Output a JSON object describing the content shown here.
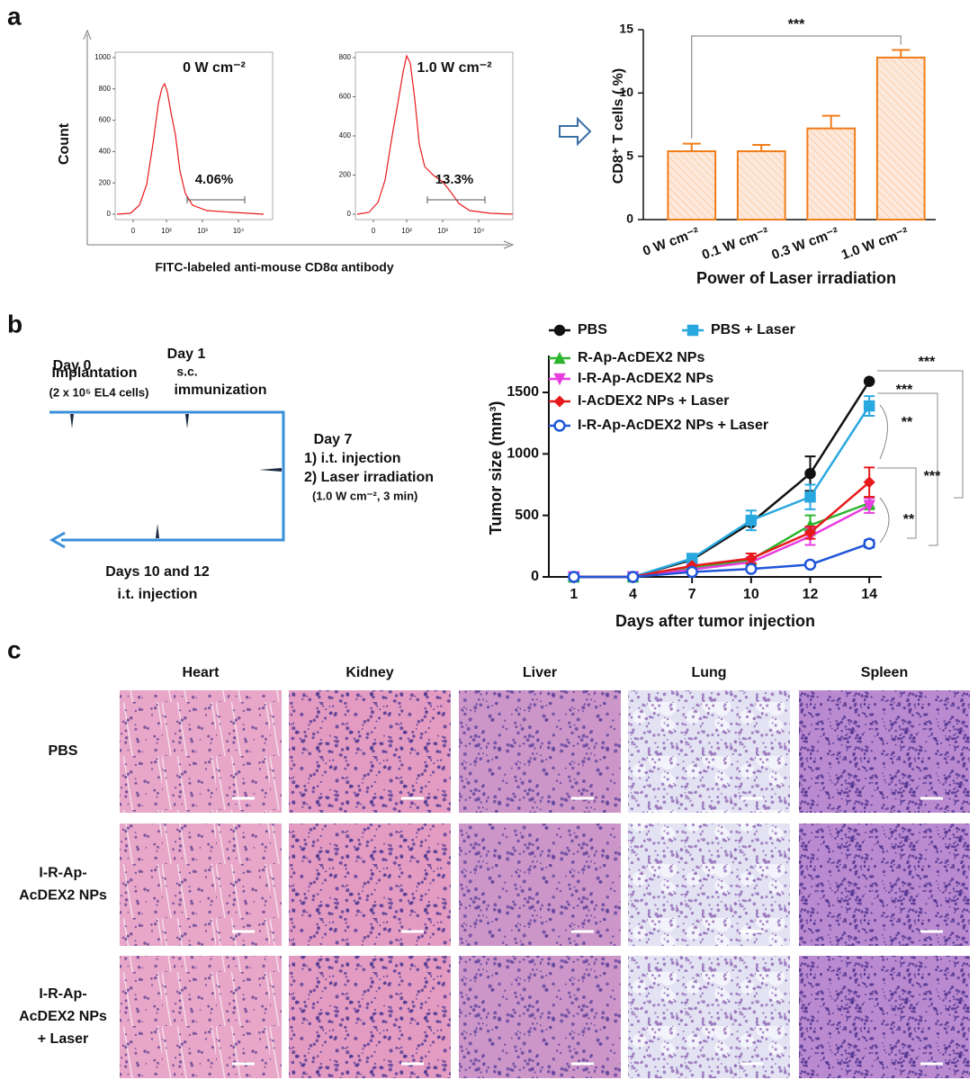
{
  "panel_labels": [
    "a",
    "b",
    "c"
  ],
  "flow": {
    "ylabel": "Count",
    "xlabel": "FITC-labeled anti-mouse CD8α antibody",
    "plots": [
      {
        "title": "0 W cm⁻²",
        "gate": "4.06%",
        "ylim": [
          0,
          1000
        ],
        "yticks": [
          0,
          200,
          400,
          600,
          800,
          1000
        ],
        "xticks": [
          {
            "value": 0,
            "label": "0"
          },
          {
            "value": 100,
            "label": "10²"
          },
          {
            "value": 1000,
            "label": "10³"
          },
          {
            "value": 10000,
            "label": "10⁴"
          }
        ]
      },
      {
        "title": "1.0 W cm⁻²",
        "gate": "13.3%",
        "ylim": [
          0,
          800
        ],
        "yticks": [
          0,
          200,
          400,
          600,
          800
        ],
        "xticks": [
          {
            "value": 0,
            "label": "0"
          },
          {
            "value": 100,
            "label": "10²"
          },
          {
            "value": 1000,
            "label": "10³"
          },
          {
            "value": 10000,
            "label": "10⁴"
          }
        ]
      }
    ]
  },
  "chart_data": [
    {
      "type": "bar",
      "ylabel": "CD8⁺ T cells ( %)",
      "xlabel": "Power of Laser irradiation",
      "categories": [
        "0 W cm⁻²",
        "0.1 W cm⁻²",
        "0.3 W cm⁻²",
        "1.0 W cm⁻²"
      ],
      "values": [
        5.4,
        5.4,
        7.2,
        12.8
      ],
      "errors": [
        0.6,
        0.5,
        1.0,
        0.6
      ],
      "color": "#f07d1a",
      "ylim": [
        0,
        15
      ],
      "yticks": [
        0,
        5,
        10,
        15
      ],
      "annotation": "***"
    },
    {
      "type": "line",
      "ylabel": "Tumor size (mm³)",
      "xlabel": "Days after tumor injection",
      "categories": [
        "1",
        "4",
        "7",
        "10",
        "12",
        "14"
      ],
      "ylim": [
        0,
        1800
      ],
      "yticks": [
        0,
        500,
        1000,
        1500
      ],
      "series": [
        {
          "name": "PBS",
          "color": "#111111",
          "marker": "circle",
          "values": [
            0,
            0,
            140,
            440,
            840,
            1590
          ],
          "errors": [
            0,
            0,
            0,
            0,
            140,
            0
          ]
        },
        {
          "name": "PBS + Laser",
          "color": "#29a8e0",
          "marker": "square",
          "values": [
            0,
            0,
            150,
            460,
            650,
            1390
          ],
          "errors": [
            0,
            0,
            0,
            80,
            100,
            80
          ]
        },
        {
          "name": "R-Ap-AcDEX2 NPs",
          "color": "#2db52d",
          "marker": "triangle-up",
          "values": [
            0,
            0,
            70,
            140,
            420,
            600
          ],
          "errors": [
            0,
            0,
            0,
            0,
            80,
            50
          ]
        },
        {
          "name": "I-R-Ap-AcDEX2 NPs",
          "color": "#e83ee0",
          "marker": "triangle-down",
          "values": [
            0,
            0,
            60,
            120,
            330,
            580
          ],
          "errors": [
            0,
            0,
            0,
            0,
            70,
            60
          ]
        },
        {
          "name": "I-AcDEX2 NPs + Laser",
          "color": "#e8191c",
          "marker": "diamond",
          "values": [
            0,
            0,
            90,
            150,
            360,
            770
          ],
          "errors": [
            0,
            0,
            0,
            40,
            50,
            120
          ]
        },
        {
          "name": "I-R-Ap-AcDEX2 NPs + Laser",
          "color": "#2155d9",
          "marker": "open-circle",
          "values": [
            0,
            0,
            40,
            65,
            100,
            270
          ],
          "errors": [
            0,
            0,
            0,
            0,
            0,
            30
          ]
        }
      ],
      "annotations": [
        "***",
        "***",
        "**",
        "***",
        "**"
      ]
    }
  ],
  "timeline": {
    "day0": [
      "Day 0",
      "Implantation",
      "(2 x 10⁵ EL4 cells)"
    ],
    "day1": [
      "Day 1",
      "s.c.",
      "immunization"
    ],
    "day7": [
      "Day 7",
      "1) i.t. injection",
      "2) Laser irradiation",
      "(1.0 W cm⁻², 3 min)"
    ],
    "day10": [
      "Days 10 and 12",
      "i.t. injection"
    ]
  },
  "histology": {
    "columns": [
      "Heart",
      "Kidney",
      "Liver",
      "Lung",
      "Spleen"
    ],
    "rows": [
      [
        "PBS"
      ],
      [
        "I-R-Ap-",
        "AcDEX2 NPs"
      ],
      [
        "I-R-Ap-",
        "AcDEX2 NPs",
        "+ Laser"
      ]
    ]
  }
}
